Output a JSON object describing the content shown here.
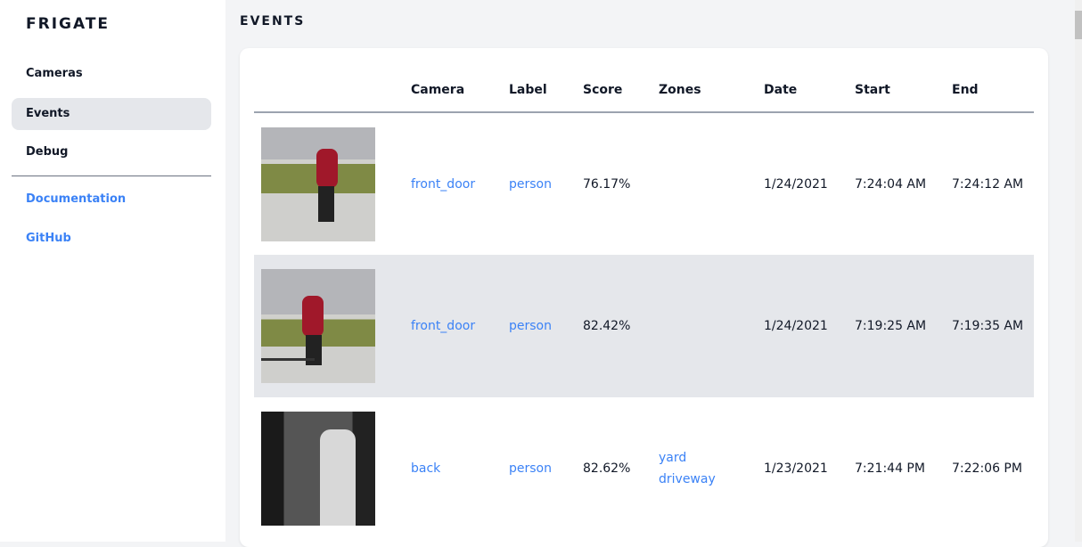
{
  "app": {
    "title": "FRIGATE"
  },
  "sidebar": {
    "items": [
      {
        "label": "Cameras",
        "active": false
      },
      {
        "label": "Events",
        "active": true
      },
      {
        "label": "Debug",
        "active": false
      },
      {
        "label": "Documentation",
        "link": true
      },
      {
        "label": "GitHub",
        "link": true
      }
    ]
  },
  "page": {
    "title": "EVENTS"
  },
  "table": {
    "headers": [
      "",
      "Camera",
      "Label",
      "Score",
      "Zones",
      "Date",
      "Start",
      "End"
    ],
    "rows": [
      {
        "camera": "front_door",
        "label": "person",
        "score": "76.17%",
        "zones": [
          "",
          ""
        ],
        "date": "1/24/2021",
        "start": "7:24:04 AM",
        "end": "7:24:12 AM"
      },
      {
        "camera": "front_door",
        "label": "person",
        "score": "82.42%",
        "zones": [
          "",
          ""
        ],
        "date": "1/24/2021",
        "start": "7:19:25 AM",
        "end": "7:19:35 AM"
      },
      {
        "camera": "back",
        "label": "person",
        "score": "82.62%",
        "zones": [
          "yard",
          "driveway"
        ],
        "date": "1/23/2021",
        "start": "7:21:44 PM",
        "end": "7:22:06 PM"
      }
    ]
  },
  "colors": {
    "accent": "#3b82f6",
    "active_bg": "#e5e7eb"
  }
}
